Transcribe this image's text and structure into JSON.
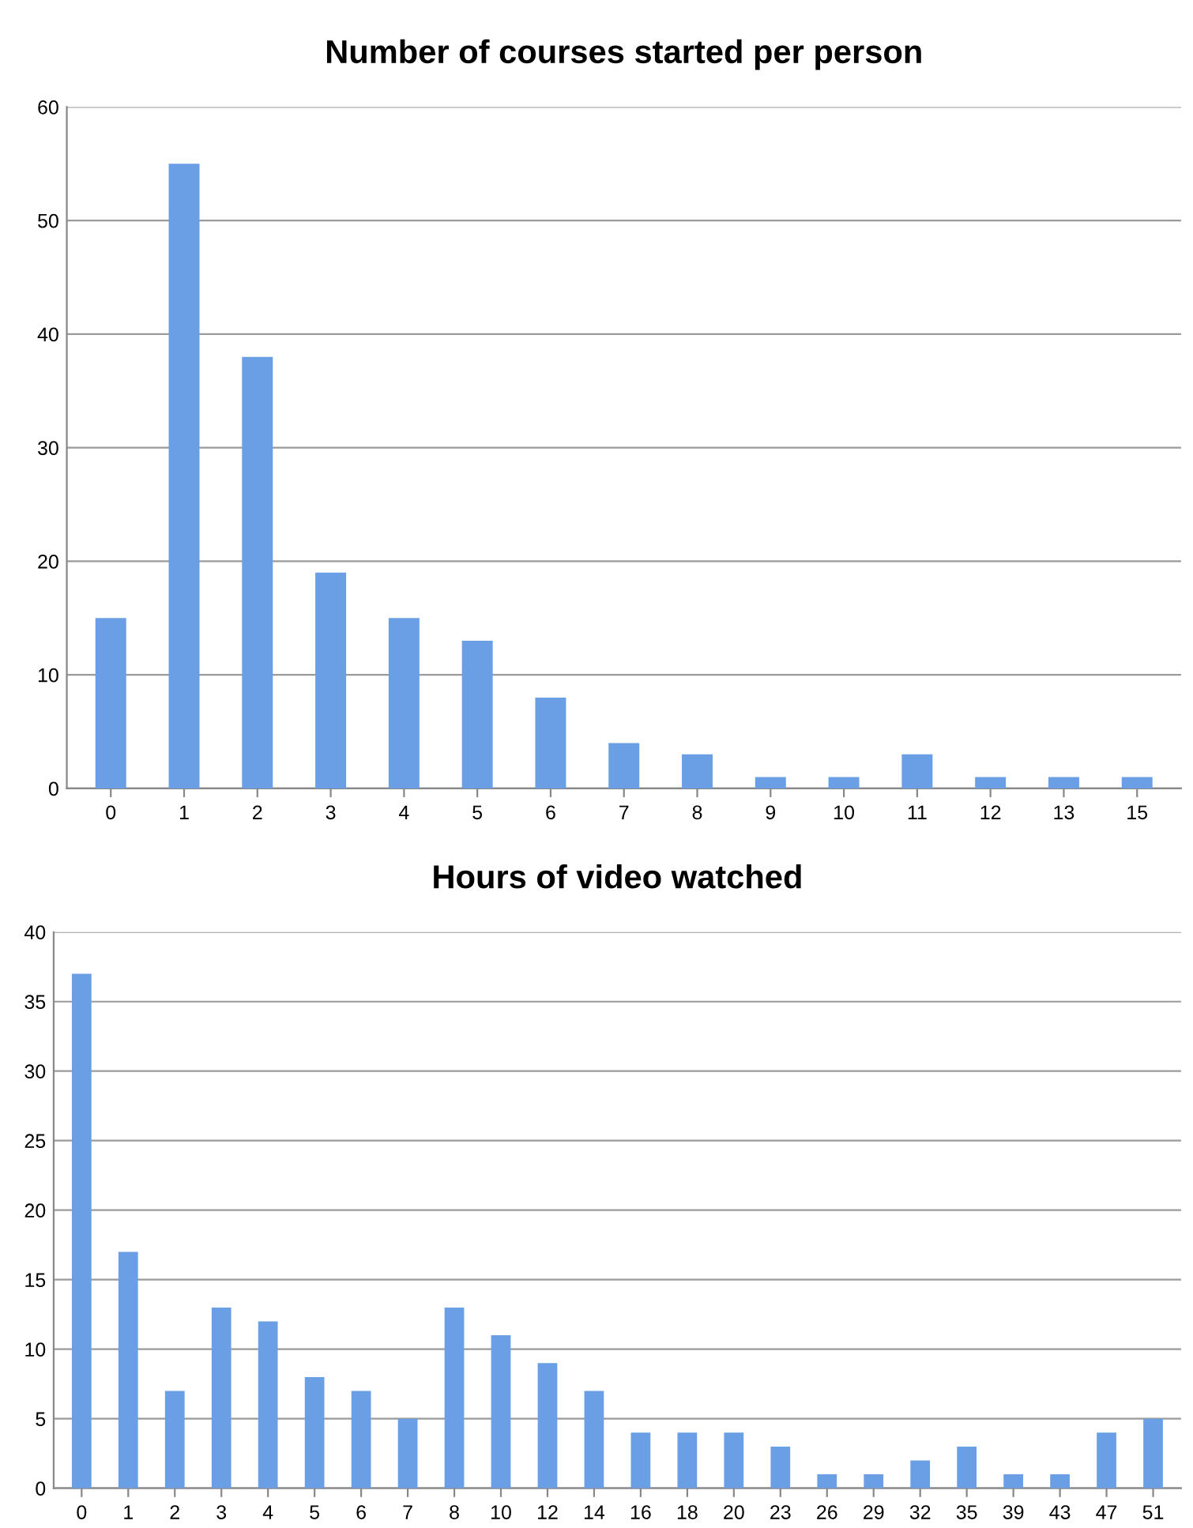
{
  "chart_data": [
    {
      "type": "bar",
      "title": "Number of courses started per person",
      "categories": [
        "0",
        "1",
        "2",
        "3",
        "4",
        "5",
        "6",
        "7",
        "8",
        "9",
        "10",
        "11",
        "12",
        "13",
        "15"
      ],
      "values": [
        15,
        55,
        38,
        19,
        15,
        13,
        8,
        4,
        3,
        1,
        1,
        3,
        1,
        1,
        1
      ],
      "color": "#6a9fe6",
      "ylim": [
        0,
        60
      ],
      "yticks": [
        0,
        10,
        20,
        30,
        40,
        50,
        60
      ],
      "grid": "y",
      "legend": false
    },
    {
      "type": "bar",
      "title": "Hours of video watched",
      "categories": [
        "0",
        "1",
        "2",
        "3",
        "4",
        "5",
        "6",
        "7",
        "8",
        "10",
        "12",
        "14",
        "16",
        "18",
        "20",
        "23",
        "26",
        "29",
        "32",
        "35",
        "39",
        "43",
        "47",
        "51"
      ],
      "values": [
        37,
        17,
        7,
        13,
        12,
        8,
        7,
        5,
        13,
        11,
        9,
        7,
        4,
        4,
        4,
        3,
        1,
        1,
        2,
        3,
        1,
        1,
        4,
        5
      ],
      "color": "#6a9fe6",
      "ylim": [
        0,
        40
      ],
      "yticks": [
        0,
        5,
        10,
        15,
        20,
        25,
        30,
        35,
        40
      ],
      "grid": "y",
      "legend": false
    }
  ]
}
